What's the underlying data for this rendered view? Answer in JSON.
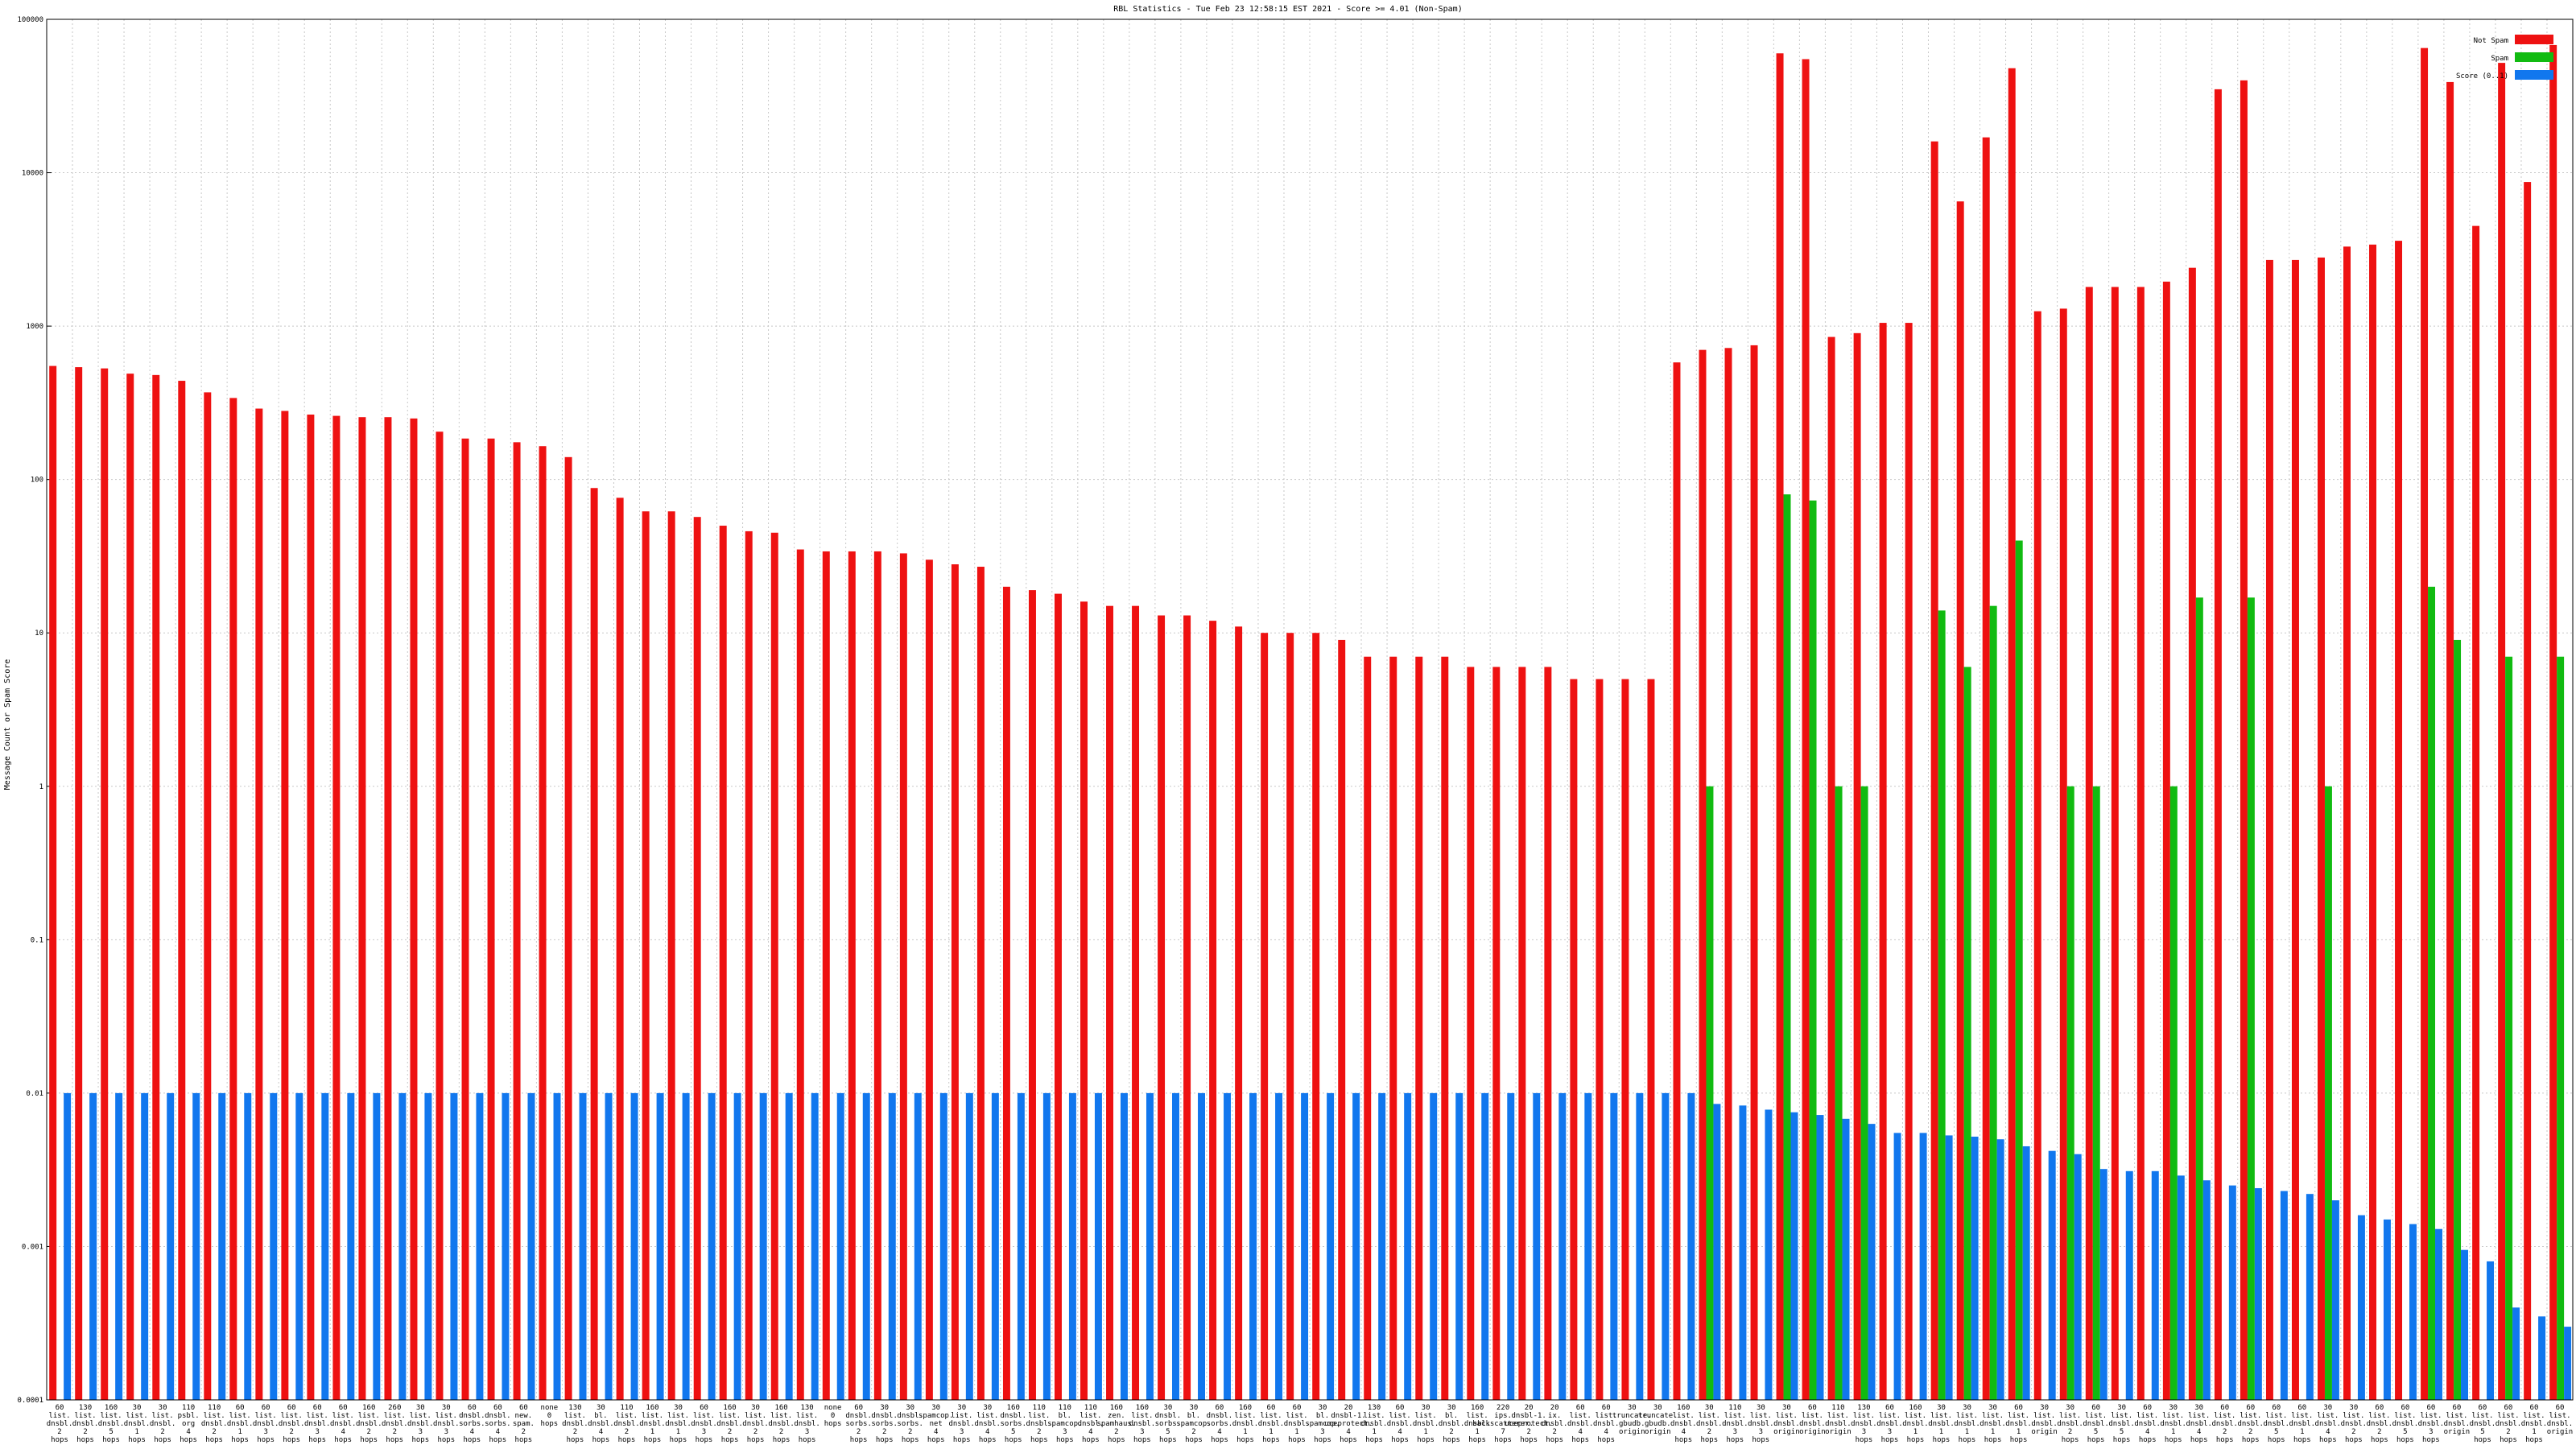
{
  "chart_data": {
    "type": "bar",
    "title": "RBL Statistics - Tue Feb 23 12:58:15 EST 2021 - Score >= 4.01 (Non-Spam)",
    "ylabel": "Message Count or Spam Score",
    "xlabel": "",
    "y_scale": "log",
    "ylim": [
      0.0001,
      100000
    ],
    "y_ticks": [
      "0.0001",
      "0.001",
      "0.01",
      "0.1",
      "1",
      "10",
      "100",
      "1000",
      "10000",
      "100000"
    ],
    "grid": true,
    "legend_position": "top-right",
    "colors": {
      "not_spam": "#ee1111",
      "spam": "#11bb11",
      "score": "#1177ee"
    },
    "series": [
      {
        "name": "Not Spam",
        "values": [
          550,
          540,
          530,
          490,
          480,
          440,
          370,
          340,
          290,
          280,
          265,
          260,
          255,
          255,
          250,
          205,
          185,
          185,
          175,
          165,
          140,
          88,
          76,
          62,
          62,
          57,
          50,
          46,
          45,
          35,
          34,
          34,
          34,
          33,
          30,
          28,
          27,
          20,
          19,
          18,
          16,
          15,
          15,
          13,
          13,
          12,
          11,
          10,
          10,
          10,
          9,
          7,
          7,
          7,
          7,
          6,
          6,
          6,
          6,
          5,
          5,
          5,
          5,
          580,
          700,
          720,
          750,
          60000,
          55000,
          850,
          900,
          1050,
          1050,
          16000,
          6500,
          17000,
          48000,
          1250,
          1300,
          1800,
          1800,
          1800,
          1950,
          2400,
          35000,
          40000,
          2700,
          2700,
          2800,
          3300,
          3400,
          3600,
          65000,
          39000,
          4500,
          52000,
          8700,
          68000
        ]
      },
      {
        "name": "Spam",
        "values": [
          0,
          0,
          0,
          0,
          0,
          0,
          0,
          0,
          0,
          0,
          0,
          0,
          0,
          0,
          0,
          0,
          0,
          0,
          0,
          0,
          0,
          0,
          0,
          0,
          0,
          0,
          0,
          0,
          0,
          0,
          0,
          0,
          0,
          0,
          0,
          0,
          0,
          0,
          0,
          0,
          0,
          0,
          0,
          0,
          0,
          0,
          0,
          0,
          0,
          0,
          0,
          0,
          0,
          0,
          0,
          0,
          0,
          0,
          0,
          0,
          0,
          0,
          0,
          0,
          1,
          0,
          0,
          80,
          73,
          1,
          1,
          0,
          0,
          14,
          6,
          15,
          40,
          0,
          1,
          1,
          0,
          0,
          1,
          17,
          0,
          17,
          0,
          0,
          1,
          0,
          0,
          0,
          20,
          9,
          0,
          7,
          0,
          7
        ]
      },
      {
        "name": "Score (0..1)",
        "values": [
          0.01,
          0.01,
          0.01,
          0.01,
          0.01,
          0.01,
          0.01,
          0.01,
          0.01,
          0.01,
          0.01,
          0.01,
          0.01,
          0.01,
          0.01,
          0.01,
          0.01,
          0.01,
          0.01,
          0.01,
          0.01,
          0.01,
          0.01,
          0.01,
          0.01,
          0.01,
          0.01,
          0.01,
          0.01,
          0.01,
          0.01,
          0.01,
          0.01,
          0.01,
          0.01,
          0.01,
          0.01,
          0.01,
          0.01,
          0.01,
          0.01,
          0.01,
          0.01,
          0.01,
          0.01,
          0.01,
          0.01,
          0.01,
          0.01,
          0.01,
          0.01,
          0.01,
          0.01,
          0.01,
          0.01,
          0.01,
          0.01,
          0.01,
          0.01,
          0.01,
          0.01,
          0.01,
          0.01,
          0.01,
          0.0085,
          0.0083,
          0.0078,
          0.0075,
          0.0072,
          0.0068,
          0.0063,
          0.0055,
          0.0055,
          0.0053,
          0.0052,
          0.005,
          0.0045,
          0.0042,
          0.004,
          0.0032,
          0.0031,
          0.0031,
          0.0029,
          0.0027,
          0.0025,
          0.0024,
          0.0023,
          0.0022,
          0.002,
          0.0016,
          0.0015,
          0.0014,
          0.0013,
          0.00095,
          0.0008,
          0.0004,
          0.00035,
          0.0003
        ]
      }
    ],
    "categories": [
      "60 list. dnsbl. 2 hops",
      "130 list. dnsbl. 2 hops",
      "160 list. dnsbl. 5 hops",
      "30 list. dnsbl. 1 hops",
      "30 list. dnsbl. 2 hops",
      "110 psbl. org 4 hops",
      "110 list. dnsbl. 2 hops",
      "60 list. dnsbl. 1 hops",
      "60 list. dnsbl. 3 hops",
      "60 list. dnsbl. 2 hops",
      "60 list. dnsbl. 3 hops",
      "60 list. dnsbl. 4 hops",
      "160 list. dnsbl. 2 hops",
      "260 list. dnsbl. 2 hops",
      "30 list. dnsbl. 3 hops",
      "30 list. dnsbl. 3 hops",
      "60 dnsbl. sorbs. 4 hops",
      "60 dnsbl. sorbs. 4 hops",
      "60 new. spam. 2 hops",
      "none 0 hops",
      "130 list. dnsbl. 2 hops",
      "30 bl. dnsbl. 4 hops",
      "110 list. dnsbl. 2 hops",
      "160 list. dnsbl. 1 hops",
      "30 list. dnsbl. 1 hops",
      "60 list. dnsbl. 3 hops",
      "160 list. dnsbl. 2 hops",
      "30 list. dnsbl. 2 hops",
      "160 list. dnsbl. 2 hops",
      "130 list. dnsbl. 3 hops",
      "none 0 hops",
      "60 dnsbl. sorbs. 2 hops",
      "30 dnsbl. sorbs. 2 hops",
      "30 dnsbl. sorbs. 2 hops",
      "30 spamcop. net 4 hops",
      "30 list. dnsbl. 3 hops",
      "30 list. dnsbl. 4 hops",
      "160 dnsbl. sorbs. 5 hops",
      "110 list. dnsbl. 2 hops",
      "110 bl. spamcop. 3 hops",
      "110 list. dnsbl. 4 hops",
      "160 zen. spamhaus. 2 hops",
      "160 list. dnsbl. 3 hops",
      "30 dnsbl. sorbs. 5 hops",
      "30 bl. spamcop. 2 hops",
      "60 dnsbl. sorbs. 4 hops",
      "160 list. dnsbl. 1 hops",
      "60 list. dnsbl. 1 hops",
      "60 list. dnsbl. 1 hops",
      "30 bl. spamcop. 3 hops",
      "20 dnsbl-1. uceprotect. 4 hops",
      "130 list. dnsbl. 1 hops",
      "60 list. dnsbl. 4 hops",
      "30 list. dnsbl. 1 hops",
      "30 bl. dnsbl. 2 hops",
      "160 list. dnsbl. 1 hops",
      "220 ips. backscatterer. 7 hops",
      "20 dnsbl-1. uceprotect. 2 hops",
      "20 ix. dnsbl. 2 hops",
      "60 list. dnsbl. 4 hops",
      "60 list. dnsbl. 4 hops",
      "30 truncate. gbudb. origin",
      "30 truncate. gbudb. origin",
      "160 list. dnsbl. 4 hops",
      "30 list. dnsbl. 2 hops",
      "110 list. dnsbl. 3 hops",
      "30 list. dnsbl. 3 hops",
      "30 list. dnsbl. origin",
      "60 list. dnsbl. origin",
      "110 list. dnsbl. origin",
      "130 list. dnsbl. 3 hops",
      "60 list. dnsbl. 3 hops",
      "160 list. dnsbl. 1 hops",
      "30 list. dnsbl. 1 hops",
      "30 list. dnsbl. 1 hops",
      "30 list. dnsbl. 1 hops",
      "60 list. dnsbl. 1 hops",
      "30 list. dnsbl. origin",
      "30 list. dnsbl. 2 hops",
      "60 list. dnsbl. 5 hops",
      "30 list. dnsbl. 5 hops",
      "60 list. dnsbl. 4 hops",
      "30 list. dnsbl. 1 hops",
      "30 list. dnsbl. 4 hops",
      "60 list. dnsbl. 2 hops",
      "60 list. dnsbl. 2 hops",
      "60 list. dnsbl. 5 hops",
      "60 list. dnsbl. 1 hops",
      "30 list. dnsbl. 4 hops",
      "30 list. dnsbl. 2 hops",
      "60 list. dnsbl. 2 hops",
      "60 list. dnsbl. 5 hops",
      "60 list. dnsbl. 3 hops",
      "60 list. dnsbl. origin",
      "60 list. dnsbl. 5 hops",
      "60 list. dnsbl. 2 hops",
      "60 list. dnsbl. 1 hops",
      "60 list. dnsbl. origin"
    ]
  }
}
